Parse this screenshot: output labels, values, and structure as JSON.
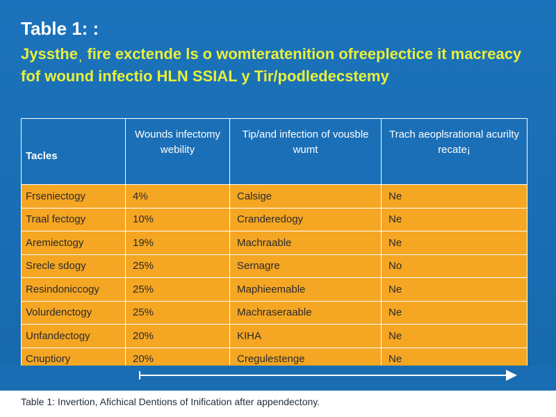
{
  "title": "Table 1: :",
  "subtitle": "Jysstheˌ fire exctende ls o womteratenition ofreeplectice it macreacy fof wound infectio HLN SSIAL y Tir/podledecstemy",
  "table": {
    "headers": [
      "Tacles",
      "Wounds infectomy webility",
      "Tip/and infection of vousble wumt",
      "Trach aeoplsrational acurilty recate¡"
    ],
    "rows": [
      [
        "Frseniectogy",
        "4%",
        "Calsige",
        "Ne"
      ],
      [
        "Traal fectogy",
        "10%",
        "Cranderedogy",
        "Ne"
      ],
      [
        "Aremiectogy",
        "19%",
        "Machraable",
        "Ne"
      ],
      [
        "Srecle sdogy",
        "25%",
        "Sernagre",
        "No"
      ],
      [
        "Resindoniccogy",
        "25%",
        "Maphieemable",
        "Ne"
      ],
      [
        "Volurdenctogy",
        "25%",
        "Machraseraable",
        "Ne"
      ],
      [
        "Unfandectogy",
        "20%",
        "KIHA",
        "Ne"
      ],
      [
        "Cnuptiory",
        "20%",
        "Cregulestenge",
        "Ne"
      ]
    ]
  },
  "caption": "Table 1: Invertion, Afichical Dentions of Inification after appendectony.",
  "colors": {
    "background": "#1c73bb",
    "header_text": "#ffffff",
    "subtitle": "#e9f03a",
    "row_fill": "#f5a623"
  }
}
